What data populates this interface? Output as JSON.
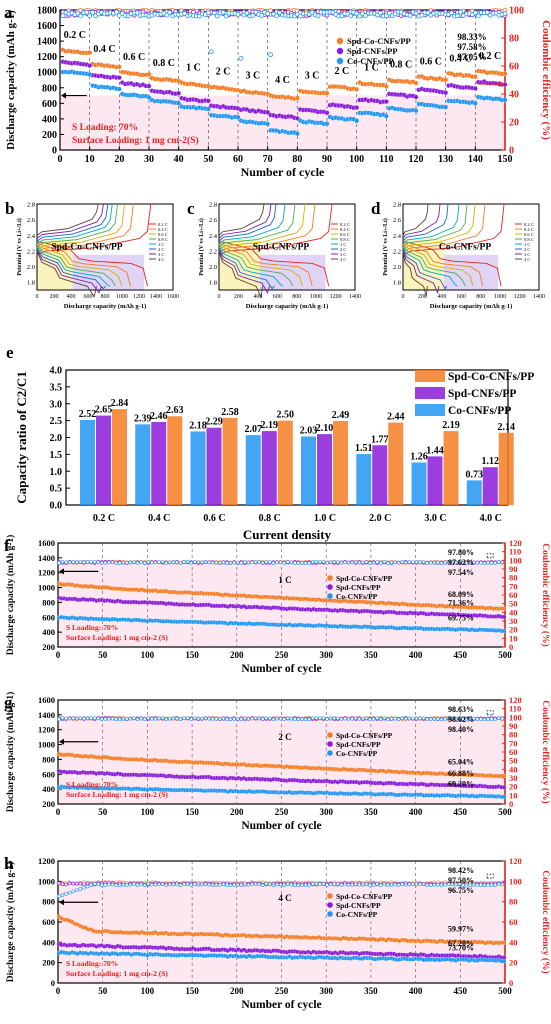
{
  "colors": {
    "orange": "#f57c24",
    "purple": "#8b1bd9",
    "blue": "#2196f3",
    "red": "#e8231f",
    "pink": "#fbd3e3",
    "yellow": "#fbf3bd",
    "lavender": "#e0d4f7"
  },
  "panel_labels": [
    "a",
    "b",
    "c",
    "d",
    "e",
    "f",
    "g",
    "h"
  ],
  "chart_data": [
    {
      "id": "a",
      "type": "scatter",
      "xlabel": "Number of cycle",
      "ylabel": "Discharge capacity (mAh g-1)",
      "y2label": "Coulombic efficiency (%)",
      "xlim": [
        0,
        150
      ],
      "ylim": [
        0,
        1800
      ],
      "y2lim": [
        0,
        100
      ],
      "xticks": [
        0,
        10,
        20,
        30,
        40,
        50,
        60,
        70,
        80,
        90,
        100,
        110,
        120,
        130,
        140,
        150
      ],
      "yticks": [
        0,
        200,
        400,
        600,
        800,
        1000,
        1200,
        1400,
        1600,
        1800
      ],
      "y2ticks": [
        0,
        20,
        40,
        60,
        80,
        100
      ],
      "rate_labels": [
        "0.2 C",
        "0.4 C",
        "0.6 C",
        "0.8 C",
        "1 C",
        "2 C",
        "3 C",
        "4 C",
        "3 C",
        "2 C",
        "1 C",
        "0.8 C",
        "0.6 C",
        "0.4 C",
        "0.2 C"
      ],
      "segment_starts": [
        0,
        10,
        20,
        30,
        40,
        50,
        60,
        70,
        80,
        90,
        100,
        110,
        120,
        130,
        140
      ],
      "series": [
        {
          "name": "Spd-Co-CNFs/PP",
          "levels": [
            1280,
            1100,
            1000,
            920,
            860,
            810,
            760,
            700,
            760,
            820,
            860,
            900,
            940,
            980,
            1010
          ],
          "ce": 98.33
        },
        {
          "name": "Spd-CNFs/PP",
          "levels": [
            1130,
            960,
            860,
            760,
            660,
            570,
            520,
            450,
            520,
            580,
            650,
            720,
            780,
            830,
            880
          ],
          "ce": 97.58
        },
        {
          "name": "Co-CNFs/PP",
          "levels": [
            1010,
            820,
            720,
            640,
            560,
            450,
            370,
            250,
            370,
            420,
            480,
            540,
            590,
            640,
            680
          ],
          "ce": 97.05
        }
      ],
      "legend": [
        "Spd-Co-CNFs/PP",
        "Spd-CNFs/PP",
        "Co-CNFs/PP"
      ],
      "ce_labels": [
        "98.33%",
        "97.58%",
        "97.05%"
      ],
      "notes": [
        "S Loading: 70%",
        "Surface Loading: 1 mg cm-2(S)"
      ]
    },
    {
      "id": "b-d",
      "type": "line",
      "xlabel": "Discharge capacity (mAh g-1)",
      "ylabel": "Potential (V vs Li+/Li)",
      "ylim": [
        1.7,
        2.8
      ],
      "yticks": [
        "1.8",
        "2.0",
        "2.2",
        "2.4",
        "2.6",
        "2.8"
      ],
      "rates": [
        "0.2 C",
        "0.4 C",
        "0.6 C",
        "0.8 C",
        "1 C",
        "2 C",
        "3 C",
        "4 C"
      ],
      "panels": [
        {
          "title": "Spd-Co-CNFs/PP",
          "xmax": 1600,
          "xticks": [
            "0",
            "200",
            "400",
            "600",
            "800",
            "1000",
            "1200",
            "1400",
            "1600"
          ],
          "caps": [
            1300,
            1100,
            1000,
            920,
            860,
            810,
            760,
            700
          ]
        },
        {
          "title": "Spd-CNFs/PP",
          "xmax": 1400,
          "xticks": [
            "0",
            "200",
            "400",
            "600",
            "800",
            "1000",
            "1200",
            "1400"
          ],
          "caps": [
            1130,
            960,
            860,
            760,
            660,
            570,
            520,
            450
          ]
        },
        {
          "title": "Co-CNFs/PP",
          "xmax": 1400,
          "xticks": [
            "0",
            "200",
            "400",
            "600",
            "800",
            "1000",
            "1200",
            "1400"
          ],
          "caps": [
            1010,
            820,
            720,
            640,
            560,
            450,
            370,
            250
          ]
        }
      ]
    },
    {
      "id": "e",
      "type": "bar",
      "xlabel": "Current density",
      "ylabel": "Capacity ratio of C2/C1",
      "ylim": [
        0,
        4.0
      ],
      "yticks": [
        "0.0",
        "0.5",
        "1.0",
        "1.5",
        "2.0",
        "2.5",
        "3.0",
        "3.5",
        "4.0"
      ],
      "categories": [
        "0.2 C",
        "0.4 C",
        "0.6 C",
        "0.8 C",
        "1.0 C",
        "2.0 C",
        "3.0 C",
        "4.0 C"
      ],
      "series": [
        {
          "name": "Co-CNFs/PP",
          "values": [
            2.52,
            2.39,
            2.18,
            2.07,
            2.03,
            1.51,
            1.26,
            0.73
          ]
        },
        {
          "name": "Spd-CNFs/PP",
          "values": [
            2.65,
            2.46,
            2.29,
            2.19,
            2.1,
            1.77,
            1.44,
            1.12
          ]
        },
        {
          "name": "Spd-Co-CNFs/PP",
          "values": [
            2.84,
            2.63,
            2.58,
            2.5,
            2.49,
            2.44,
            2.19,
            2.14
          ]
        }
      ],
      "legend": [
        "Spd-Co-CNFs/PP",
        "Spd-CNFs/PP",
        "Co-CNFs/PP"
      ]
    },
    {
      "id": "f",
      "type": "scatter",
      "rate": "1 C",
      "xlabel": "Number of cycle",
      "ylabel": "Discharge capacity (mAh g-1)",
      "y2label": "Coulombic efficiency (%)",
      "xlim": [
        0,
        500
      ],
      "ylim": [
        200,
        1600
      ],
      "y2lim": [
        0,
        120
      ],
      "yticks": [
        200,
        400,
        600,
        800,
        1000,
        1200,
        1400,
        1600
      ],
      "y2ticks": [
        0,
        10,
        20,
        30,
        40,
        50,
        60,
        70,
        80,
        90,
        100,
        110,
        120
      ],
      "series": [
        {
          "name": "Spd-Co-CNFs/PP",
          "start": 1050,
          "end": 710,
          "ce": 97.8,
          "retention": "68.09%",
          "ce_label": "97.80%"
        },
        {
          "name": "Spd-CNFs/PP",
          "start": 860,
          "end": 610,
          "ce": 97.62,
          "retention": "71.36%",
          "ce_label": "97.62%"
        },
        {
          "name": "Co-CNFs/PP",
          "start": 600,
          "end": 420,
          "ce": 97.54,
          "retention": "69.75%",
          "ce_label": "97.54%"
        }
      ],
      "notes": [
        "S Loading: 70%",
        "Surface Loading: 1 mg cm-2 (S)"
      ]
    },
    {
      "id": "g",
      "type": "scatter",
      "rate": "2 C",
      "xlabel": "Number of cycle",
      "ylabel": "Discharge capacity (mAh g-1)",
      "y2label": "Coulombic efficiency (%)",
      "xlim": [
        0,
        500
      ],
      "ylim": [
        200,
        1600
      ],
      "y2lim": [
        0,
        120
      ],
      "yticks": [
        200,
        400,
        600,
        800,
        1000,
        1200,
        1400,
        1600
      ],
      "y2ticks": [
        0,
        10,
        20,
        30,
        40,
        50,
        60,
        70,
        80,
        90,
        100,
        110,
        120
      ],
      "series": [
        {
          "name": "Spd-Co-CNFs/PP",
          "start": 870,
          "end": 570,
          "ce": 98.63,
          "retention": "65.04%",
          "ce_label": "98.63%"
        },
        {
          "name": "Spd-CNFs/PP",
          "start": 640,
          "end": 430,
          "ce": 98.62,
          "retention": "66.88%",
          "ce_label": "98.62%"
        },
        {
          "name": "Co-CNFs/PP",
          "start": 430,
          "end": 300,
          "ce": 98.4,
          "retention": "69.20%",
          "ce_label": "98.40%"
        }
      ],
      "notes": [
        "S Loading: 70%",
        "Surface Loading: 1 mg cm-2 (S)"
      ]
    },
    {
      "id": "h",
      "type": "scatter",
      "rate": "4 C",
      "xlabel": "Number of cycle",
      "ylabel": "Discharge capacity (mAh g-1)",
      "y2label": "Coulombic efficiency (%)",
      "xlim": [
        0,
        500
      ],
      "ylim": [
        0,
        1200
      ],
      "y2lim": [
        0,
        120
      ],
      "yticks": [
        0,
        200,
        400,
        600,
        800,
        1000,
        1200
      ],
      "y2ticks": [
        0,
        20,
        40,
        60,
        80,
        100,
        120
      ],
      "series": [
        {
          "name": "Spd-Co-CNFs/PP",
          "start": 650,
          "end": 390,
          "ce": 98.42,
          "retention": "59.97%",
          "ce_label": "98.42%"
        },
        {
          "name": "Spd-CNFs/PP",
          "start": 380,
          "end": 255,
          "ce": 97.5,
          "retention": "67.20%",
          "ce_label": "97.50%"
        },
        {
          "name": "Co-CNFs/PP",
          "start": 300,
          "end": 220,
          "ce": 96.75,
          "retention": "73.70%",
          "ce_label": "96.75%"
        }
      ],
      "notes": [
        "S Loading: 70%",
        "Surface Loading: 1 mg cm-2 (S)"
      ]
    }
  ]
}
